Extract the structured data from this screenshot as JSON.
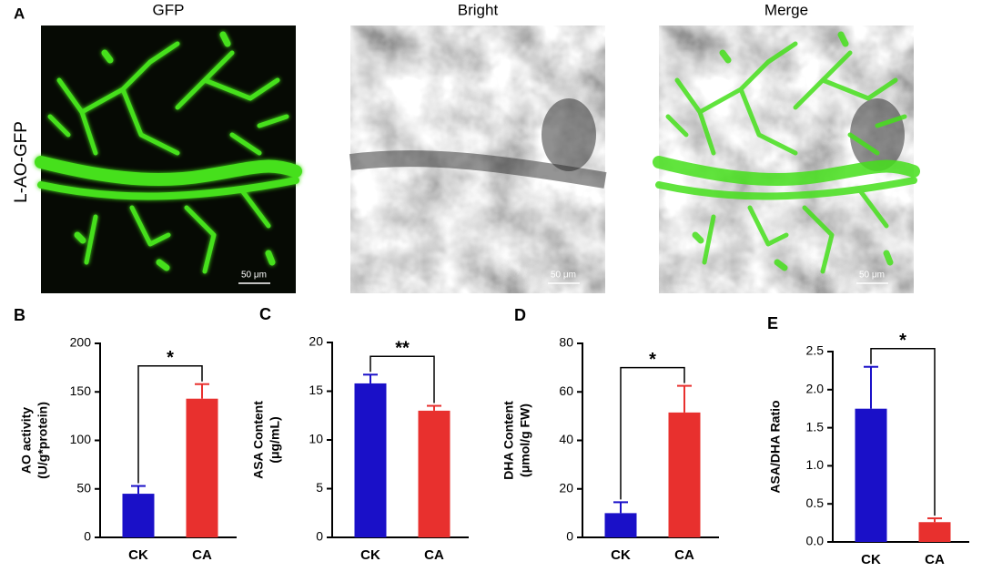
{
  "panel_a": {
    "label": "A",
    "columns": [
      "GFP",
      "Bright",
      "Merge"
    ],
    "row_label": "L-AO-GFP",
    "scale_bar": "50 μm"
  },
  "chart_data": [
    {
      "type": "bar",
      "panel": "B",
      "ylabel": [
        "AO activity",
        "(U/g*protein)"
      ],
      "categories": [
        "CK",
        "CA"
      ],
      "values": [
        45,
        143
      ],
      "errors": [
        8,
        15
      ],
      "colors": [
        "#1a10c8",
        "#e8302e"
      ],
      "ylim": [
        0,
        200
      ],
      "yticks": [
        0,
        50,
        100,
        150,
        200
      ],
      "significance": "*"
    },
    {
      "type": "bar",
      "panel": "C",
      "ylabel": [
        "ASA Content",
        "(μg/mL)"
      ],
      "categories": [
        "CK",
        "CA"
      ],
      "values": [
        15.8,
        13.0
      ],
      "errors": [
        0.9,
        0.5
      ],
      "colors": [
        "#1a10c8",
        "#e8302e"
      ],
      "ylim": [
        0,
        20
      ],
      "yticks": [
        0,
        5,
        10,
        15,
        20
      ],
      "significance": "**"
    },
    {
      "type": "bar",
      "panel": "D",
      "ylabel": [
        "DHA Content",
        "(μmol/g FW)"
      ],
      "categories": [
        "CK",
        "CA"
      ],
      "values": [
        10,
        51.5
      ],
      "errors": [
        4.5,
        11
      ],
      "colors": [
        "#1a10c8",
        "#e8302e"
      ],
      "ylim": [
        0,
        80
      ],
      "yticks": [
        0,
        20,
        40,
        60,
        80
      ],
      "significance": "*"
    },
    {
      "type": "bar",
      "panel": "E",
      "ylabel": [
        "ASA/DHA Ratio"
      ],
      "categories": [
        "CK",
        "CA"
      ],
      "values": [
        1.75,
        0.26
      ],
      "errors": [
        0.55,
        0.05
      ],
      "colors": [
        "#1a10c8",
        "#e8302e"
      ],
      "ylim": [
        0,
        2.5
      ],
      "yticks": [
        {
          "value": 0,
          "label": "0.0"
        },
        0.5,
        {
          "value": 1,
          "label": "1.0"
        },
        1.5,
        {
          "value": 2,
          "label": "2.0"
        },
        2.5
      ],
      "significance": "*"
    }
  ]
}
